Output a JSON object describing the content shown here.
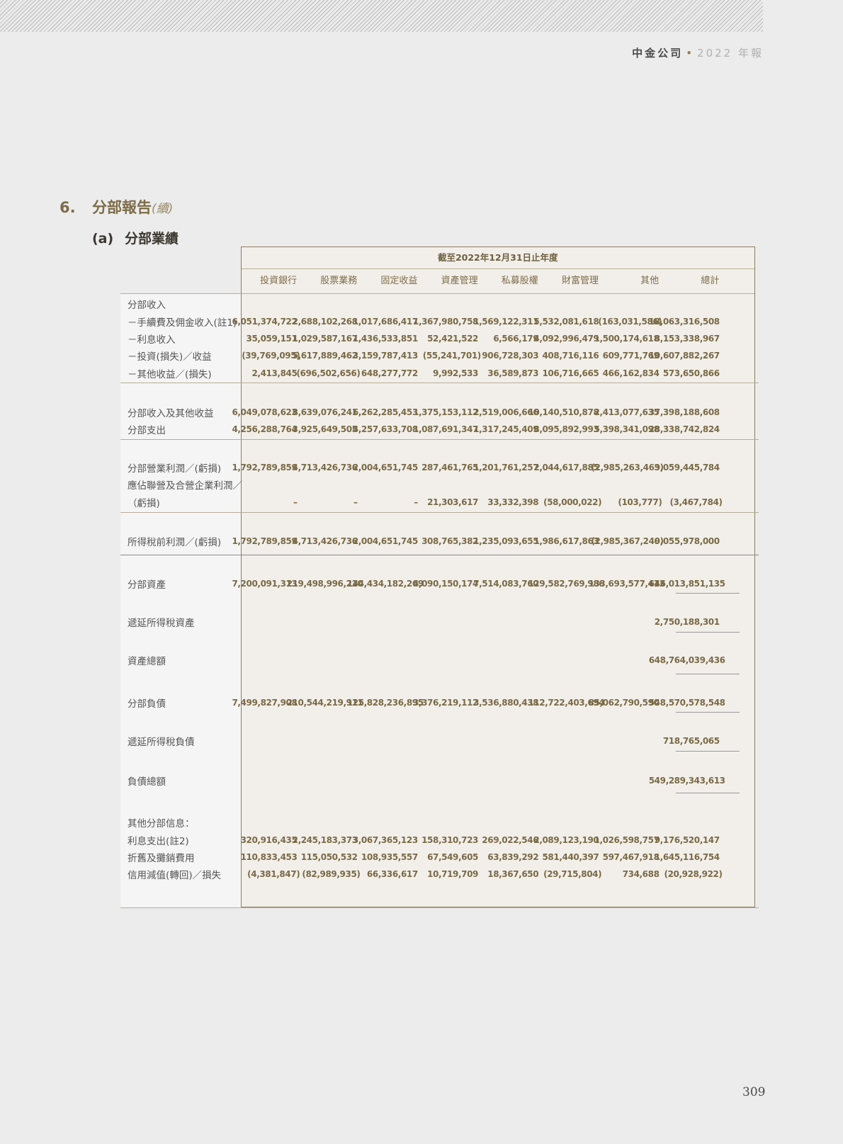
{
  "running_head": {
    "company": "中金公司",
    "separator": "•",
    "year": "2022 年報"
  },
  "section": {
    "number": "6.",
    "title": "分部報告",
    "continued": "(續)"
  },
  "subsection": {
    "number": "(a)",
    "title": "分部業績"
  },
  "table": {
    "period": "截至2022年12月31日止年度",
    "columns": [
      "投資銀行",
      "股票業務",
      "固定收益",
      "資產管理",
      "私募股權",
      "財富管理",
      "其他",
      "總計"
    ],
    "rows": [
      {
        "label": "分部收入",
        "values": []
      },
      {
        "label": "－手續費及佣金收入(註1)",
        "values": [
          "6,051,374,722",
          "2,688,102,268",
          "1,017,686,417",
          "1,367,980,758",
          "1,569,122,311",
          "5,532,081,618",
          "(163,031,586)",
          "18,063,316,508"
        ]
      },
      {
        "label": "－利息收入",
        "values": [
          "35,059,151",
          "1,029,587,167",
          "1,436,533,851",
          "52,421,522",
          "6,566,179",
          "4,092,996,479",
          "1,500,174,618",
          "8,153,338,967"
        ]
      },
      {
        "label": "－投資(損失)／收益",
        "values": [
          "(39,769,095)",
          "5,617,889,462",
          "3,159,787,413",
          "(55,241,701)",
          "906,728,303",
          "408,716,116",
          "609,771,769",
          "10,607,882,267"
        ]
      },
      {
        "label": "－其他收益／(損失)",
        "values": [
          "2,413,845",
          "(696,502,656)",
          "648,277,772",
          "9,992,533",
          "36,589,873",
          "106,716,665",
          "466,162,834",
          "573,650,866"
        ]
      },
      {
        "label": "分部收入及其他收益",
        "values": [
          "6,049,078,623",
          "8,639,076,241",
          "6,262,285,453",
          "1,375,153,112",
          "2,519,006,666",
          "10,140,510,878",
          "2,413,077,635",
          "37,398,188,608"
        ]
      },
      {
        "label": "分部支出",
        "values": [
          "4,256,288,764",
          "3,925,649,505",
          "4,257,633,708",
          "1,087,691,347",
          "1,317,245,409",
          "8,095,892,993",
          "5,398,341,098",
          "28,338,742,824"
        ]
      },
      {
        "label": "分部營業利潤／(虧損)",
        "values": [
          "1,792,789,859",
          "4,713,426,736",
          "2,004,651,745",
          "287,461,765",
          "1,201,761,257",
          "2,044,617,885",
          "(2,985,263,463)",
          "9,059,445,784"
        ]
      },
      {
        "label": "應佔聯營及合營企業利潤／",
        "values": []
      },
      {
        "label": "（虧損)",
        "values": [
          "–",
          "–",
          "–",
          "21,303,617",
          "33,332,398",
          "(58,000,022)",
          "(103,777)",
          "(3,467,784)"
        ]
      },
      {
        "label": "所得稅前利潤／(虧損)",
        "values": [
          "1,792,789,859",
          "4,713,426,736",
          "2,004,651,745",
          "308,765,382",
          "1,235,093,655",
          "1,986,617,863",
          "(2,985,367,240)",
          "9,055,978,000"
        ]
      },
      {
        "label": "分部資產",
        "values": [
          "7,200,091,313",
          "219,498,996,220",
          "144,434,182,269",
          "4,090,150,174",
          "7,514,083,760",
          "129,582,769,986",
          "133,693,577,413",
          "646,013,851,135"
        ]
      },
      {
        "label": "遞延所得稅資產",
        "values": [
          "",
          "",
          "",
          "",
          "",
          "",
          "",
          "2,750,188,301"
        ]
      },
      {
        "label": "資產總額",
        "values": [
          "",
          "",
          "",
          "",
          "",
          "",
          "",
          "648,764,039,436"
        ]
      },
      {
        "label": "分部負債",
        "values": [
          "7,499,827,908",
          "210,544,219,911",
          "125,828,236,895",
          "3,376,219,112",
          "3,536,880,438",
          "112,722,403,694",
          "85,062,790,590",
          "548,570,578,548"
        ]
      },
      {
        "label": "遞延所得稅負債",
        "values": [
          "",
          "",
          "",
          "",
          "",
          "",
          "",
          "718,765,065"
        ]
      },
      {
        "label": "負債總額",
        "values": [
          "",
          "",
          "",
          "",
          "",
          "",
          "",
          "549,289,343,613"
        ]
      },
      {
        "label": "其他分部信息：",
        "values": []
      },
      {
        "label": "利息支出(註2)",
        "values": [
          "320,916,435",
          "2,245,183,373",
          "3,067,365,123",
          "158,310,723",
          "269,022,546",
          "2,089,123,190",
          "1,026,598,757",
          "9,176,520,147"
        ]
      },
      {
        "label": "折舊及攤銷費用",
        "values": [
          "110,833,453",
          "115,050,532",
          "108,935,557",
          "67,549,605",
          "63,839,292",
          "581,440,397",
          "597,467,918",
          "1,645,116,754"
        ]
      },
      {
        "label": "信用減值(轉回)／損失",
        "values": [
          "(4,381,847)",
          "(82,989,935)",
          "66,336,617",
          "10,719,709",
          "18,367,650",
          "(29,715,804)",
          "734,688",
          "(20,928,922)"
        ]
      }
    ]
  },
  "page_number": "309",
  "colors": {
    "accent": "#7a6a46",
    "border": "#8b7d5e",
    "table_bg": "#f2efea"
  }
}
